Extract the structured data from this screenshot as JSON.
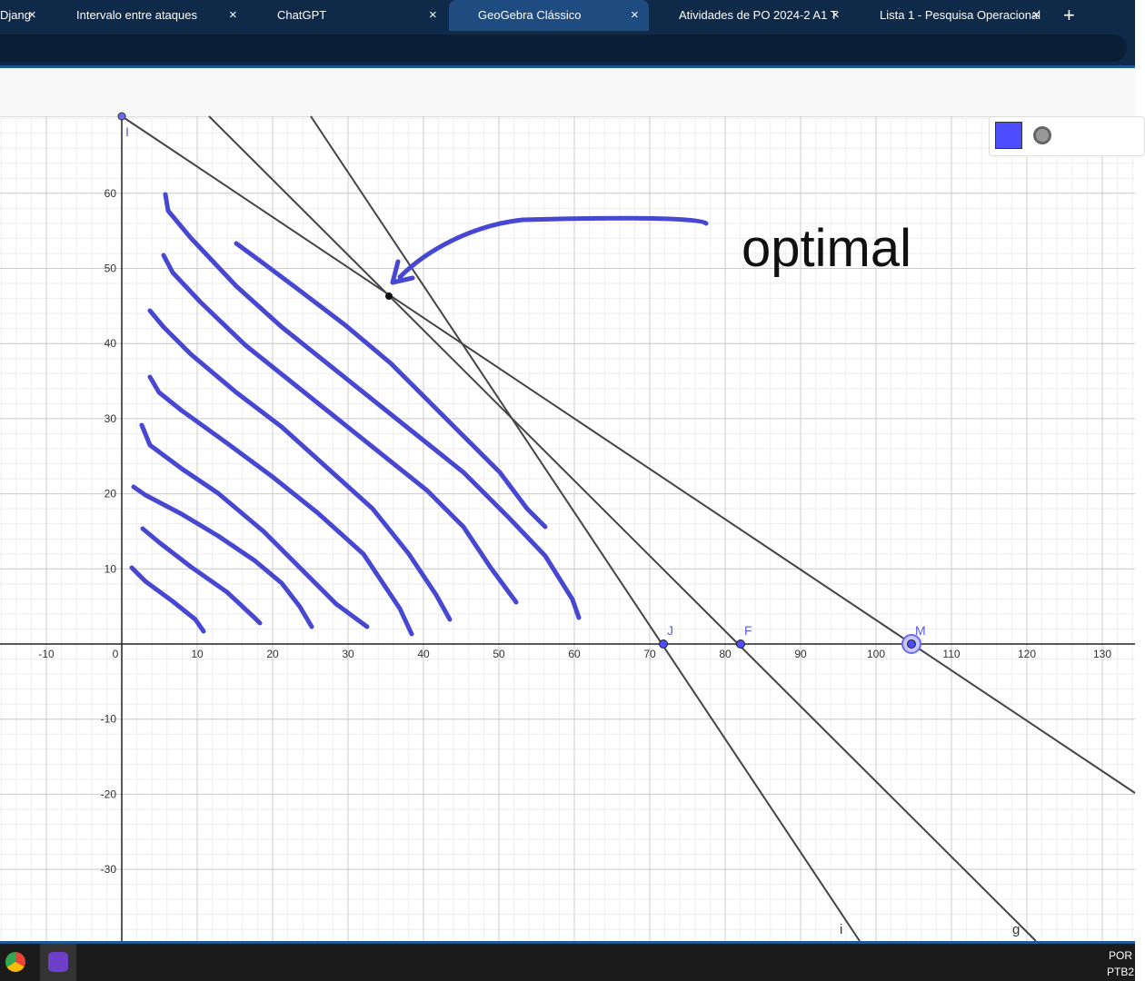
{
  "browser": {
    "tabs": [
      "Djang",
      "Intervalo entre ataques",
      "ChatGPT",
      "GeoGebra Clássico",
      "Atividades de PO 2024-2 A1 T",
      "Lista 1 - Pesquisa Operacional"
    ]
  },
  "graph": {
    "xticks": [
      -10,
      0,
      10,
      20,
      30,
      40,
      50,
      60,
      70,
      80,
      90,
      100,
      110,
      120,
      130
    ],
    "yticks": [
      60,
      50,
      40,
      30,
      20,
      10,
      -10,
      -20,
      -30
    ],
    "points": [
      "I",
      "J",
      "F",
      "M"
    ],
    "line_labels": [
      "i",
      "g"
    ],
    "annotation": "optimal"
  },
  "taskbar": {
    "language": "POR",
    "layout": "PTB2"
  }
}
